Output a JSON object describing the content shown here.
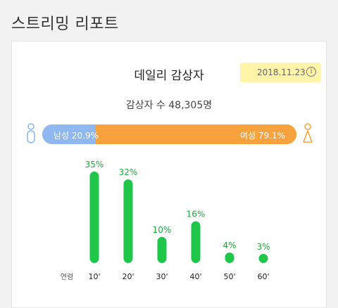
{
  "header": {
    "title": "스트리밍 리포트"
  },
  "card": {
    "title": "데일리 감상자",
    "date": "2018.11.23",
    "info_icon": "info-icon",
    "listener_count": "감상자 수 48,305명"
  },
  "gender": {
    "male_label": "남성 20.9%",
    "female_label": "여성 79.1%",
    "male_fraction": 0.209,
    "female_fraction": 0.791,
    "male_color": "#8fb8f0",
    "female_color": "#f7a23d",
    "male_icon": "male-person-icon",
    "female_icon": "female-person-icon"
  },
  "chart_data": {
    "type": "bar",
    "xlabel": "연령",
    "categories": [
      "10'",
      "20'",
      "30'",
      "40'",
      "50'",
      "60'"
    ],
    "values": [
      35,
      32,
      10,
      16,
      4,
      3
    ],
    "value_labels": [
      "35%",
      "32%",
      "10%",
      "16%",
      "4%",
      "3%"
    ],
    "color": "#1fc64a",
    "label_color": "#1fa83c"
  }
}
